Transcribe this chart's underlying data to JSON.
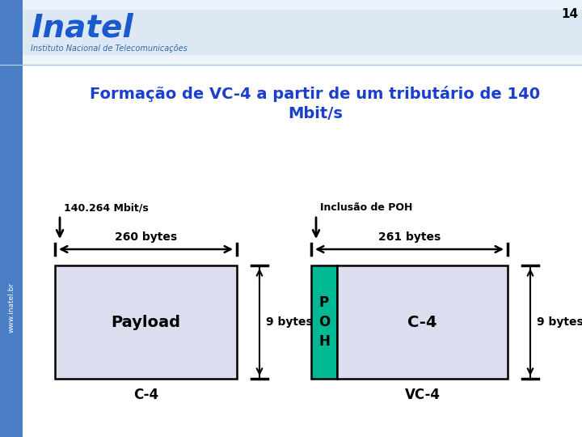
{
  "title": "Formação de VC-4 a partir de um tributário de 140\nMbit/s",
  "title_color": "#1a3fcc",
  "title_fontsize": 14,
  "background_color": "#FFFFFF",
  "slide_bg_top": "#dce9f5",
  "page_number": "14",
  "inatel_text": "Inatel",
  "subtitle_text": "Instituto Nacional de Telecomunicações",
  "left_arrow_label": "140.264 Mbit/s",
  "right_arrow_label": "Inclusão de POH",
  "left_span_label": "260 bytes",
  "right_span_label": "261 bytes",
  "payload_label": "Payload",
  "c4_label": "C-4",
  "vc4_label": "VC-4",
  "poh_label": "P\nO\nH",
  "c4_right_label": "C-4",
  "left_9bytes": "9 bytes",
  "right_9bytes": "9 bytes",
  "box_fill_light": "#ddddf0",
  "box_fill_poh": "#00b894",
  "box_outline": "#000000",
  "text_color": "#000000",
  "left_bar_color": "#4a7dc4",
  "inatel_color": "#1a5acc",
  "subtitle_color": "#3366aa"
}
